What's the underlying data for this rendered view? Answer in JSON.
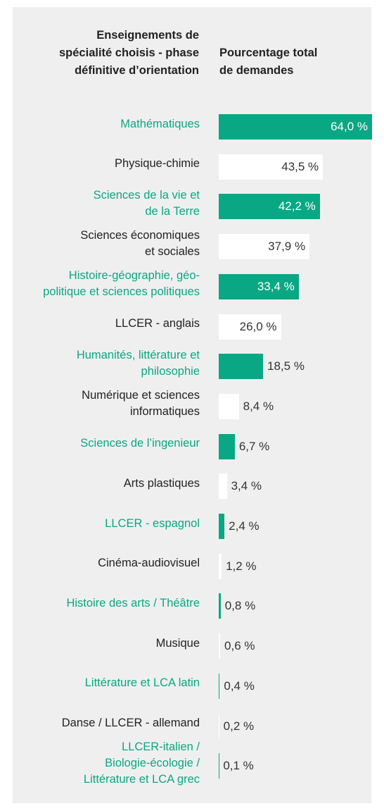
{
  "chart_data": {
    "type": "bar",
    "orientation": "horizontal",
    "category_header": "Enseignements de\nspécialité choisis - phase\ndéfinitive d’orientation",
    "value_header": "Pourcentage total\nde demandes",
    "categories": [
      "Mathématiques",
      "Physique-chimie",
      "Sciences de la vie et\nde la Terre",
      "Sciences économiques\net sociales",
      "Histoire-géographie, géo-\npolitique et sciences politiques",
      "LLCER - anglais",
      "Humanités, littérature et\nphilosophie",
      "Numérique et sciences\ninformatiques",
      "Sciences de l’ingenieur",
      "Arts plastiques",
      "LLCER - espagnol",
      "Cinéma-audiovisuel",
      "Histoire des arts / Théâtre",
      "Musique",
      "Littérature et LCA latin",
      "Danse / LLCER - allemand",
      "LLCER-italien /\nBiologie-écologie /\nLittérature et LCA grec"
    ],
    "values": [
      64.0,
      43.5,
      42.2,
      37.9,
      33.4,
      26.0,
      18.5,
      8.4,
      6.7,
      3.4,
      2.4,
      1.2,
      0.8,
      0.6,
      0.4,
      0.2,
      0.1
    ],
    "value_labels": [
      "64,0 %",
      "43,5 %",
      "42,2 %",
      "37,9 %",
      "33,4 %",
      "26,0 %",
      "18,5 %",
      "8,4 %",
      "6,7 %",
      "3,4 %",
      "2,4 %",
      "1,2 %",
      "0,8 %",
      "0,6 %",
      "0,4 %",
      "0,2 %",
      "0,1 %"
    ],
    "colors": [
      "#0aa784",
      "#ffffff",
      "#0aa784",
      "#ffffff",
      "#0aa784",
      "#ffffff",
      "#0aa784",
      "#ffffff",
      "#0aa784",
      "#ffffff",
      "#0aa784",
      "#ffffff",
      "#0aa784",
      "#ffffff",
      "#0aa784",
      "#ffffff",
      "#0aa784"
    ],
    "xlim": [
      0,
      64
    ]
  }
}
